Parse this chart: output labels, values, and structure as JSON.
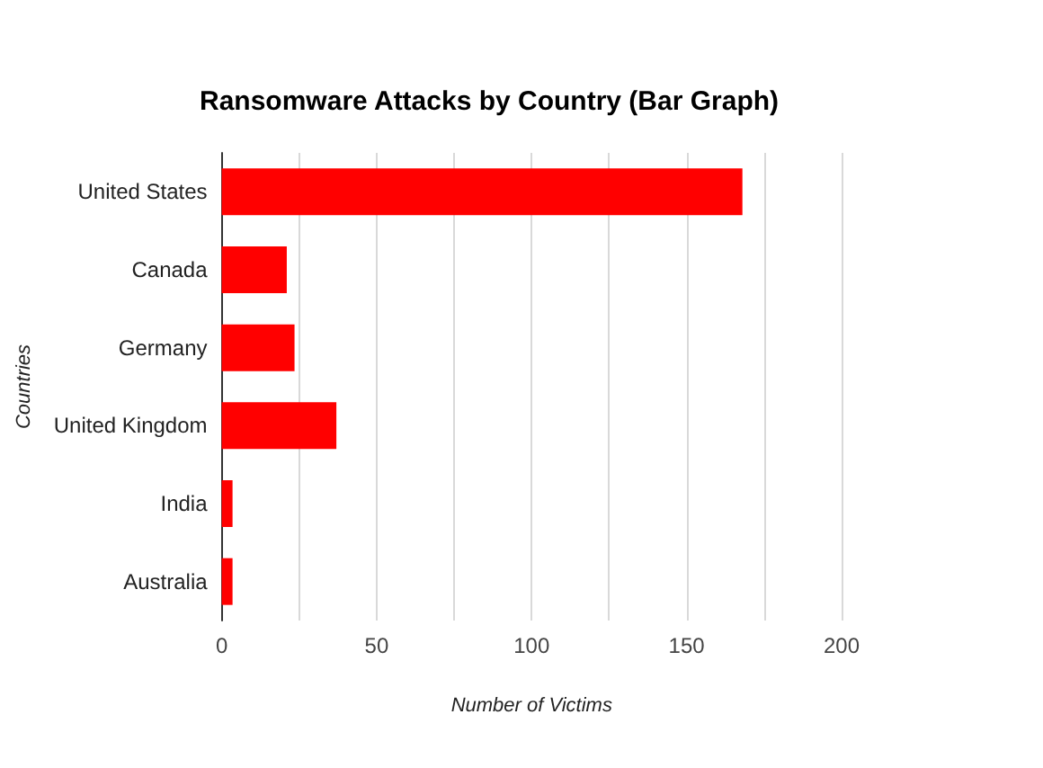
{
  "chart_data": {
    "type": "bar",
    "orientation": "horizontal",
    "title": "Ransomware Attacks by Country (Bar Graph)",
    "xlabel": "Number of Victims",
    "ylabel": "Countries",
    "categories": [
      "United States",
      "Canada",
      "Germany",
      "United Kingdom",
      "India",
      "Australia"
    ],
    "values": [
      168,
      21,
      23.5,
      37,
      3.5,
      3.5
    ],
    "color": "#ff0000",
    "xlim": [
      0,
      200
    ],
    "xticks": [
      0,
      {
        "value": 25,
        "label": null
      },
      50,
      {
        "value": 75,
        "label": null
      },
      100,
      {
        "value": 125,
        "label": null
      },
      150,
      {
        "value": 175,
        "label": null
      },
      200
    ],
    "grid": "x"
  }
}
